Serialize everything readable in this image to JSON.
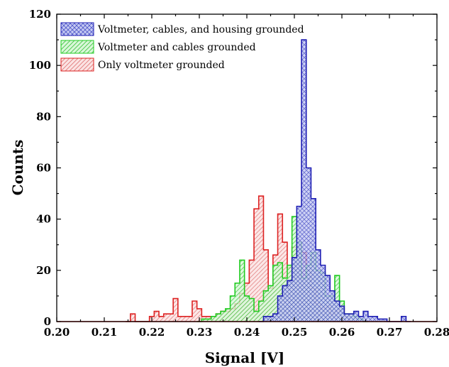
{
  "chart_data": {
    "type": "histogram",
    "xlabel": "Signal [V]",
    "ylabel": "Counts",
    "xlim": [
      0.2,
      0.28
    ],
    "ylim": [
      0,
      120
    ],
    "x_ticks": [
      "0.20",
      "0.21",
      "0.22",
      "0.23",
      "0.24",
      "0.25",
      "0.26",
      "0.27",
      "0.28"
    ],
    "y_ticks": [
      "0",
      "20",
      "40",
      "60",
      "80",
      "100",
      "120"
    ],
    "bin_width": 0.001,
    "legend_position": "top-left",
    "series": [
      {
        "name": "Voltmeter, cables, and housing grounded",
        "color": "#1f1fb4",
        "fill": "#9aa0e6",
        "hatch": "crosshatch",
        "x": [
          0.243,
          0.244,
          0.245,
          0.246,
          0.247,
          0.248,
          0.249,
          0.25,
          0.251,
          0.252,
          0.253,
          0.254,
          0.255,
          0.256,
          0.257,
          0.258,
          0.259,
          0.26,
          0.261,
          0.262,
          0.263,
          0.264,
          0.265,
          0.266,
          0.267,
          0.268,
          0.269,
          0.27,
          0.271,
          0.272,
          0.273,
          0.274
        ],
        "counts": [
          0,
          2,
          2,
          3,
          10,
          14,
          16,
          25,
          45,
          110,
          60,
          48,
          28,
          22,
          18,
          12,
          8,
          6,
          3,
          3,
          4,
          2,
          4,
          2,
          2,
          1,
          1,
          0,
          0,
          0,
          2,
          0
        ]
      },
      {
        "name": "Voltmeter and cables grounded",
        "color": "#22cc22",
        "fill": "#a8eea8",
        "hatch": "diagonal",
        "x": [
          0.23,
          0.231,
          0.232,
          0.233,
          0.234,
          0.235,
          0.236,
          0.237,
          0.238,
          0.239,
          0.24,
          0.241,
          0.242,
          0.243,
          0.244,
          0.245,
          0.246,
          0.247,
          0.248,
          0.249,
          0.25,
          0.251,
          0.252,
          0.253,
          0.254,
          0.255,
          0.256,
          0.257,
          0.258,
          0.259,
          0.26,
          0.261,
          0.262,
          0.263,
          0.264,
          0.265
        ],
        "counts": [
          0,
          1,
          1,
          2,
          3,
          4,
          5,
          10,
          15,
          24,
          10,
          9,
          4,
          8,
          12,
          14,
          22,
          23,
          17,
          22,
          41,
          31,
          17,
          22,
          27,
          20,
          19,
          10,
          10,
          18,
          8,
          3,
          3,
          2,
          1,
          0
        ]
      },
      {
        "name": "Only voltmeter grounded",
        "color": "#dd2222",
        "fill": "#f2b0b0",
        "hatch": "diagonal",
        "x": [
          0.215,
          0.216,
          0.217,
          0.218,
          0.219,
          0.22,
          0.221,
          0.222,
          0.223,
          0.224,
          0.225,
          0.226,
          0.227,
          0.228,
          0.229,
          0.23,
          0.231,
          0.232,
          0.233,
          0.234,
          0.235,
          0.236,
          0.237,
          0.238,
          0.239,
          0.24,
          0.241,
          0.242,
          0.243,
          0.244,
          0.245,
          0.246,
          0.247,
          0.248,
          0.249,
          0.25,
          0.251,
          0.252,
          0.253,
          0.254,
          0.255,
          0.256,
          0.257,
          0.258,
          0.259,
          0.26,
          0.261,
          0.262,
          0.263
        ],
        "counts": [
          0,
          3,
          0,
          0,
          0,
          2,
          4,
          2,
          3,
          3,
          9,
          2,
          2,
          2,
          8,
          5,
          2,
          2,
          2,
          3,
          4,
          4,
          5,
          7,
          11,
          15,
          24,
          44,
          49,
          28,
          13,
          26,
          42,
          31,
          21,
          29,
          31,
          27,
          20,
          13,
          7,
          5,
          6,
          3,
          4,
          5,
          2,
          0,
          0
        ]
      }
    ]
  }
}
